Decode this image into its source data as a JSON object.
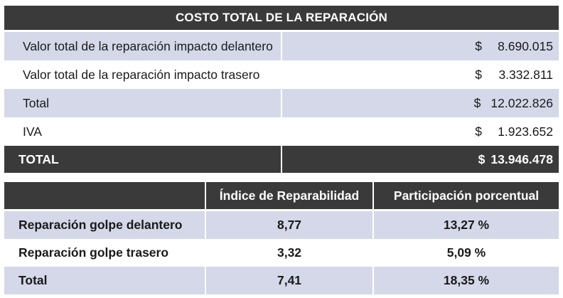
{
  "cost_table": {
    "title": "COSTO TOTAL DE LA REPARACIÓN",
    "rows": [
      {
        "label": "Valor total de la reparación impacto delantero",
        "currency": "$",
        "amount": "8.690.015"
      },
      {
        "label": "Valor total de la reparación impacto trasero",
        "currency": "$",
        "amount": "3.332.811"
      },
      {
        "label": "Total",
        "currency": "$",
        "amount": "12.022.826"
      },
      {
        "label": "IVA",
        "currency": "$",
        "amount": "1.923.652"
      }
    ],
    "total": {
      "label": "TOTAL",
      "currency": "$",
      "amount": "13.946.478"
    }
  },
  "index_table": {
    "headers": [
      "",
      "Índice de Reparabilidad",
      "Participación porcentual"
    ],
    "rows": [
      {
        "label": "Reparación golpe delantero",
        "index": "8,77",
        "share": "13,27 %"
      },
      {
        "label": "Reparación golpe trasero",
        "index": "3,32",
        "share": "5,09 %"
      },
      {
        "label": "Total",
        "index": "7,41",
        "share": "18,35 %"
      }
    ]
  },
  "colors": {
    "header_bg": "#3a3a3a",
    "shade_bg": "#d4d8e8",
    "header_text": "#ffffff"
  }
}
